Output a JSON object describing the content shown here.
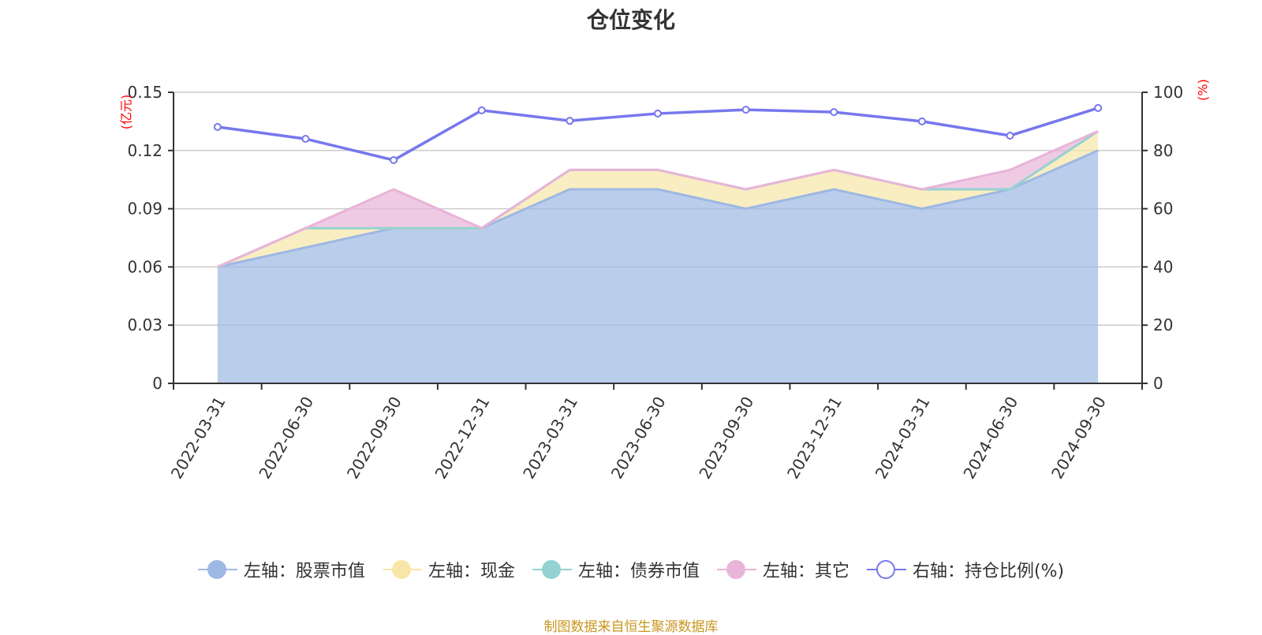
{
  "title": "仓位变化",
  "source": "制图数据来自恒生聚源数据库",
  "left_axis_unit": "(亿元)",
  "right_axis_unit": "(%)",
  "colors": {
    "stock": "#9db8e3",
    "cash": "#f7e6a8",
    "bond": "#94d2d2",
    "other": "#e8b4d8",
    "ratio": "#7777ee",
    "unit": "#ff0000",
    "source": "#c8961e"
  },
  "legend": [
    {
      "label": "左轴：股票市值",
      "color": "#9db8e3",
      "type": "filled"
    },
    {
      "label": "左轴：现金",
      "color": "#f7e6a8",
      "type": "filled"
    },
    {
      "label": "左轴：债券市值",
      "color": "#94d2d2",
      "type": "filled"
    },
    {
      "label": "左轴：其它",
      "color": "#e8b4d8",
      "type": "filled"
    },
    {
      "label": "右轴：持仓比例(%)",
      "color": "#7777ee",
      "type": "hollow"
    }
  ],
  "chart_data": {
    "type": "area",
    "title": "仓位变化",
    "categories": [
      "2022-03-31",
      "2022-06-30",
      "2022-09-30",
      "2022-12-31",
      "2023-03-31",
      "2023-06-30",
      "2023-09-30",
      "2023-12-31",
      "2024-03-31",
      "2024-06-30",
      "2024-09-30"
    ],
    "series": [
      {
        "name": "左轴：股票市值",
        "axis": "left",
        "stacked": true,
        "values": [
          0.06,
          0.07,
          0.08,
          0.08,
          0.1,
          0.1,
          0.09,
          0.1,
          0.09,
          0.1,
          0.12
        ]
      },
      {
        "name": "左轴：现金",
        "axis": "left",
        "stacked": true,
        "values": [
          0.0,
          0.01,
          0.0,
          0.0,
          0.01,
          0.01,
          0.01,
          0.01,
          0.01,
          0.0,
          0.01
        ]
      },
      {
        "name": "左轴：债券市值",
        "axis": "left",
        "stacked": true,
        "values": [
          0.0,
          0.0,
          0.0,
          0.0,
          0.0,
          0.0,
          0.0,
          0.0,
          0.0,
          0.0,
          0.0
        ]
      },
      {
        "name": "左轴：其它",
        "axis": "left",
        "stacked": true,
        "values": [
          0.0,
          0.0,
          0.02,
          0.0,
          0.0,
          0.0,
          0.0,
          0.0,
          0.0,
          0.01,
          0.0
        ]
      },
      {
        "name": "右轴：持仓比例(%)",
        "axis": "right",
        "type": "line",
        "values": [
          88.1,
          84.0,
          76.7,
          93.8,
          90.2,
          92.7,
          94.0,
          93.2,
          90.0,
          85.1,
          94.6
        ]
      }
    ],
    "left_axis": {
      "label": "(亿元)",
      "ylim": [
        0,
        0.15
      ],
      "ticks": [
        "0",
        "0.03",
        "0.06",
        "0.09",
        "0.12",
        "0.15"
      ]
    },
    "right_axis": {
      "label": "(%)",
      "ylim": [
        0,
        100
      ],
      "ticks": [
        "0",
        "20",
        "40",
        "60",
        "80",
        "100"
      ]
    },
    "grid": true,
    "legend_position": "bottom"
  }
}
